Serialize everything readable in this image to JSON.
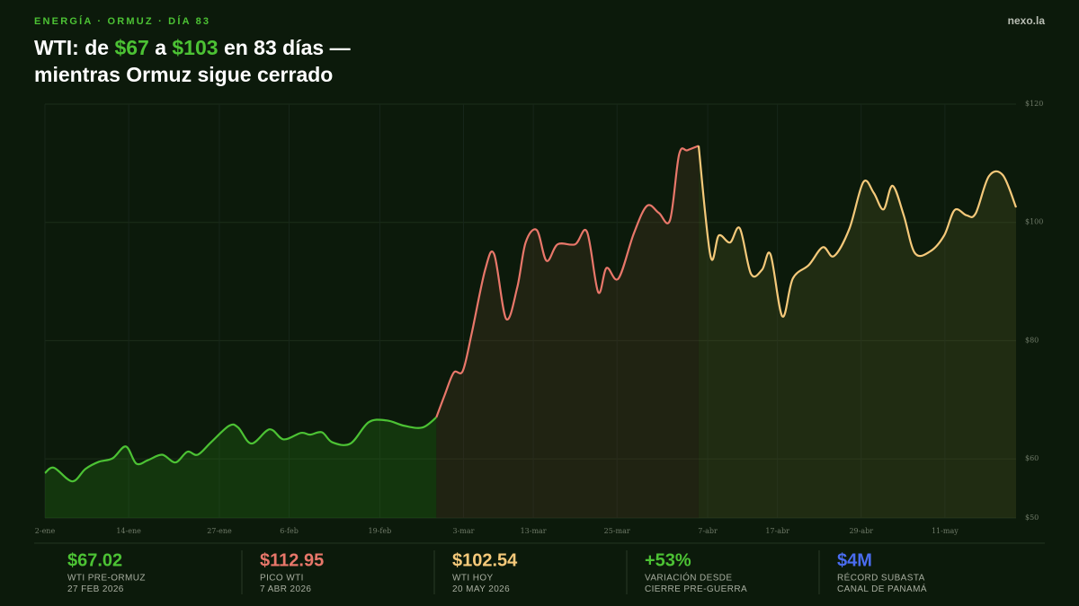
{
  "kicker": "ENERGÍA · ORMUZ · DÍA 83",
  "brand": "nexo.la",
  "title": [
    [
      {
        "text": "WTI: de "
      },
      {
        "text": "$67",
        "color": "#4cc234"
      },
      {
        "text": " a "
      },
      {
        "text": "$103",
        "color": "#4cc234"
      },
      {
        "text": " en 83 días —"
      }
    ],
    [
      {
        "text": "mientras Ormuz sigue cerrado"
      }
    ]
  ],
  "chart_data": {
    "type": "line",
    "xlim": [
      0,
      139.2
    ],
    "ylim": [
      50,
      120
    ],
    "xticks": [
      {
        "value": 0,
        "label": "2-ene"
      },
      {
        "value": 12,
        "label": "14-ene"
      },
      {
        "value": 25,
        "label": "27-ene"
      },
      {
        "value": 35,
        "label": "6-feb"
      },
      {
        "value": 48,
        "label": "19-feb"
      },
      {
        "value": 60,
        "label": "3-mar"
      },
      {
        "value": 70,
        "label": "13-mar"
      },
      {
        "value": 82,
        "label": "25-mar"
      },
      {
        "value": 95,
        "label": "7-abr"
      },
      {
        "value": 105,
        "label": "17-abr"
      },
      {
        "value": 117,
        "label": "29-abr"
      },
      {
        "value": 129,
        "label": "11-may"
      }
    ],
    "yticks": [
      {
        "value": 50,
        "label": "$50"
      },
      {
        "value": 60,
        "label": "$60"
      },
      {
        "value": 80,
        "label": "$80"
      },
      {
        "value": 100,
        "label": "$100"
      },
      {
        "value": 120,
        "label": "$120"
      }
    ],
    "grid": true,
    "series": [
      {
        "color": "#4cc234",
        "fill": "rgba(40,130,20,0.28)",
        "x": [
          0,
          1.3,
          3.9,
          5.8,
          7.7,
          9.7,
          11.6,
          13.1,
          14.8,
          16.8,
          18.7,
          20.4,
          21.9,
          23.8,
          26.4,
          27.7,
          29.6,
          32.2,
          34.2,
          36.7,
          38.0,
          39.7,
          41.2,
          43.8,
          46.4,
          49.0,
          51.5,
          54.1,
          56.1
        ],
        "values": [
          57.6,
          58.5,
          56.2,
          58.3,
          59.5,
          60.1,
          62.1,
          59.2,
          59.8,
          60.7,
          59.4,
          61.2,
          60.7,
          62.8,
          65.6,
          65.3,
          62.6,
          65.0,
          63.3,
          64.4,
          64.1,
          64.5,
          62.8,
          62.6,
          66.2,
          66.5,
          65.6,
          65.3,
          67.02
        ]
      },
      {
        "color": "#e8776a",
        "fill": "rgba(80,55,35,0.30)",
        "x": [
          56.1,
          57.3,
          58.6,
          59.9,
          61.2,
          63.1,
          64.4,
          66.1,
          67.7,
          68.9,
          70.5,
          71.9,
          73.5,
          76.0,
          77.7,
          79.3,
          80.5,
          82.2,
          84.4,
          86.3,
          88.0,
          89.6,
          90.9,
          92.1,
          93.7
        ],
        "values": [
          67.02,
          70.8,
          74.6,
          74.9,
          81.4,
          92.0,
          94.6,
          83.7,
          89.0,
          96.6,
          98.7,
          93.5,
          96.3,
          96.3,
          98.4,
          88.2,
          92.3,
          90.5,
          98.1,
          102.8,
          101.6,
          100.4,
          111.5,
          112.2,
          112.95
        ]
      },
      {
        "color": "#f5c97a",
        "fill": "rgba(80,85,35,0.30)",
        "x": [
          93.7,
          95.4,
          96.6,
          98.2,
          99.6,
          101.2,
          102.8,
          104.0,
          105.7,
          107.2,
          109.5,
          111.5,
          113.1,
          115.3,
          117.3,
          118.8,
          120.2,
          121.5,
          123.1,
          124.7,
          126.9,
          128.9,
          130.4,
          132.1,
          133.4,
          135.3,
          137.3,
          139.2
        ],
        "values": [
          112.95,
          94.3,
          97.8,
          96.6,
          99.0,
          91.3,
          92.0,
          94.6,
          84.1,
          90.5,
          92.8,
          95.8,
          94.3,
          98.9,
          106.8,
          105.0,
          102.2,
          106.2,
          101.2,
          94.8,
          95.1,
          97.8,
          102.1,
          101.2,
          101.5,
          107.8,
          108.0,
          102.54
        ]
      }
    ]
  },
  "stats": [
    {
      "value": "$67.02",
      "color": "#4cc234",
      "lines": [
        "WTI PRE-ORMUZ",
        "27 FEB 2026"
      ]
    },
    {
      "value": "$112.95",
      "color": "#e8776a",
      "lines": [
        "PICO WTI",
        "7 ABR 2026"
      ]
    },
    {
      "value": "$102.54",
      "color": "#f5c97a",
      "lines": [
        "WTI HOY",
        "20 MAY 2026"
      ]
    },
    {
      "value": "+53%",
      "color": "#4cc234",
      "lines": [
        "VARIACIÓN DESDE",
        "CIERRE PRE-GUERRA"
      ]
    },
    {
      "value": "$4M",
      "color": "#4a6cf0",
      "lines": [
        "RÉCORD SUBASTA",
        "CANAL DE PANAMÁ"
      ]
    }
  ]
}
